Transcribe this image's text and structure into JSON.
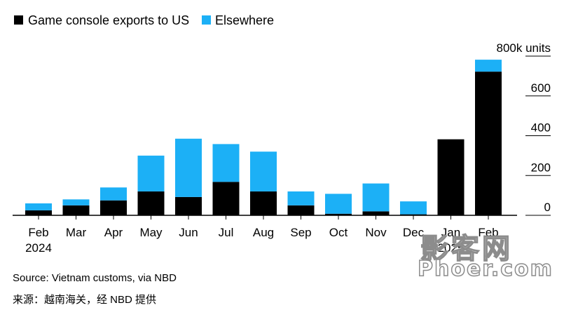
{
  "chart_data": {
    "type": "bar",
    "stacked": true,
    "categories": [
      "Feb",
      "Mar",
      "Apr",
      "May",
      "Jun",
      "Jul",
      "Aug",
      "Sep",
      "Oct",
      "Nov",
      "Dec",
      "Jan",
      "Feb"
    ],
    "year_labels": [
      "2024",
      "",
      "",
      "",
      "",
      "",
      "",
      "",
      "",
      "",
      "",
      "2025",
      ""
    ],
    "series": [
      {
        "name": "Game console exports to US",
        "color": "#000000",
        "values": [
          25,
          50,
          75,
          120,
          92,
          168,
          120,
          50,
          8,
          20,
          5,
          382,
          722
        ]
      },
      {
        "name": "Elsewhere",
        "color": "#1cb0f6",
        "values": [
          35,
          30,
          65,
          180,
          293,
          190,
          200,
          70,
          100,
          140,
          65,
          0,
          60
        ]
      }
    ],
    "yaxis": {
      "ticks": [
        0,
        200,
        400,
        600,
        800
      ],
      "tick_labels": [
        "0",
        "200",
        "400",
        "600",
        "800k units"
      ],
      "position": "right"
    },
    "ylim": [
      0,
      800
    ],
    "legend_position": "top-left",
    "grid": false
  },
  "source": "Source: Vietnam customs, via NBD",
  "source_cn": "来源：越南海关，经 NBD 提供",
  "watermark": {
    "line1": "影客网",
    "line2": "Phoer.com"
  }
}
